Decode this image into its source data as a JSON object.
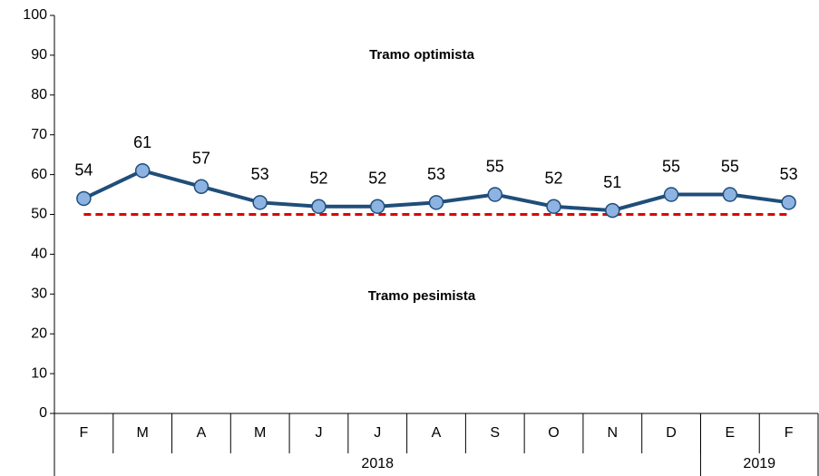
{
  "chart_data": {
    "type": "line",
    "categories": [
      "F",
      "M",
      "A",
      "M",
      "J",
      "J",
      "A",
      "S",
      "O",
      "N",
      "D",
      "E",
      "F"
    ],
    "x_groups": [
      {
        "label": "2018",
        "count": 11
      },
      {
        "label": "2019",
        "count": 2
      }
    ],
    "series": [
      {
        "color": "#1f4e79",
        "marker_color": "#8db3e2",
        "values": [
          54,
          61,
          57,
          53,
          52,
          52,
          53,
          55,
          52,
          51,
          55,
          55,
          53
        ]
      }
    ],
    "reference_line": {
      "value": 50,
      "color": "#e00000"
    },
    "annotations": [
      "Tramo optimista",
      "Tramo pesimista"
    ],
    "ylim": [
      0,
      100
    ],
    "yticks": [
      0,
      10,
      20,
      30,
      40,
      50,
      60,
      70,
      80,
      90,
      100
    ]
  }
}
